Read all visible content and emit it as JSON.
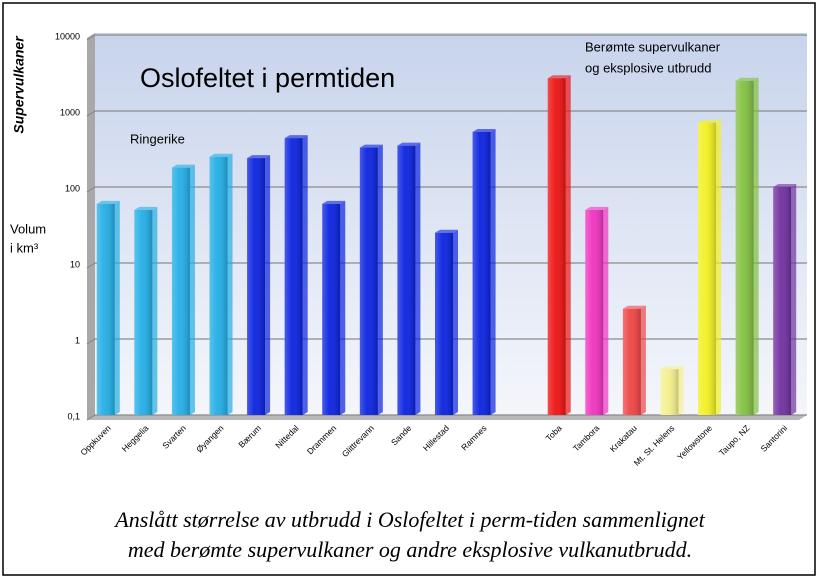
{
  "chart_data": {
    "type": "bar",
    "title": "Oslofeltet i permtiden",
    "ylabel": "Supervulkaner",
    "unit_label": [
      "Volum",
      "i km³"
    ],
    "annotations": [
      "Ringerike"
    ],
    "group_note": [
      "Berømte supervulkaner",
      "og eksplosive utbrudd"
    ],
    "caption": [
      "Anslått størrelse av utbrudd i Oslofeltet i perm-tiden sammenlignet",
      "med berømte supervulkaner og andre eksplosive vulkanutbrudd."
    ],
    "categories": [
      "Oppkuven",
      "Heggelia",
      "Svarten",
      "Øyangen",
      "Bærum",
      "Nittedal",
      "Drammen",
      "Glittrevann",
      "Sande",
      "Hillestad",
      "Ramnes",
      null,
      "Toba",
      "Tambora",
      "Krakatau",
      "Mt. St. Helens",
      "Yellowstone",
      "Taupo, NZ",
      "Santorini"
    ],
    "values": [
      60,
      50,
      180,
      250,
      240,
      440,
      60,
      330,
      350,
      25,
      530,
      null,
      2700,
      50,
      2.5,
      0.4,
      700,
      2500,
      100
    ],
    "colors": [
      "#22aee6",
      "#22aee6",
      "#22aee6",
      "#22aee6",
      "#0a22e0",
      "#0a22e0",
      "#0a22e0",
      "#0a22e0",
      "#0a22e0",
      "#0a22e0",
      "#0a22e0",
      null,
      "#ee1212",
      "#f032c0",
      "#f04444",
      "#f6f08c",
      "#f2f020",
      "#82c040",
      "#7030a0"
    ],
    "ylim": [
      0.1,
      10000
    ],
    "yticks": [
      {
        "value": 0.1,
        "label": "0,1"
      },
      1,
      10,
      100,
      1000,
      10000
    ],
    "log_scale": true,
    "grid": true
  }
}
